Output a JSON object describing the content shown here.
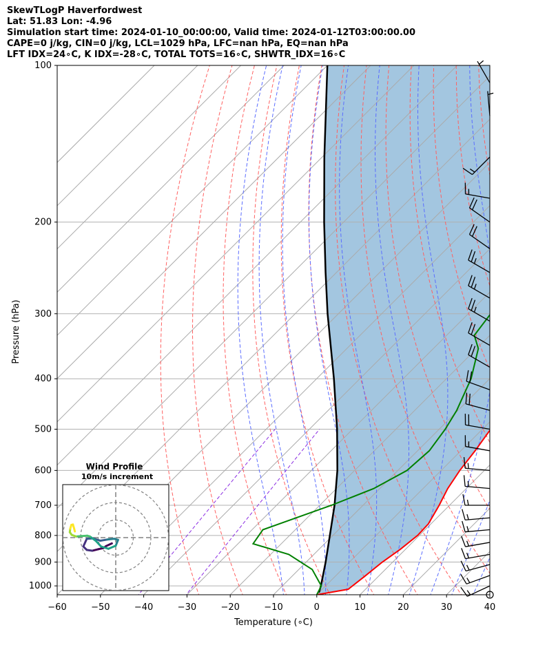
{
  "header": {
    "line1": "SkewTLogP Haverfordwest",
    "line2": "Lat: 51.83   Lon: -4.96",
    "line3": "Simulation start time: 2024-01-10_00:00:00, Valid time: 2024-01-12T03:00:00.00",
    "line4": "CAPE=0 j/kg, CIN=0 j/kg, LCL=1029 hPa, LFC=nan hPa, EQ=nan hPa",
    "line5": "LFT IDX=24∘C, K IDX=-28∘C, TOTAL TOTS=16∘C, SHWTR_IDX=16∘C"
  },
  "colors": {
    "temperature": "#ff0000",
    "dewpoint": "#008000",
    "parcel": "#000000",
    "fill": "#a3c6e0",
    "dry_adiabat": "#ff6060",
    "moist_adiabat": "#5a6cff",
    "mixing_ratio": "#8a2be2",
    "isotherm": "#aaaaaa"
  },
  "chart_data": {
    "type": "line",
    "title": "",
    "xlabel": "Temperature (∘C)",
    "ylabel": "Pressure (hPa)",
    "xlim": [
      -60,
      40
    ],
    "ylim": [
      1040,
      100
    ],
    "y_scale": "log",
    "grid": true,
    "x_ticks": [
      "−60",
      "−50",
      "−40",
      "−30",
      "−20",
      "−10",
      "0",
      "10",
      "20",
      "30",
      "40"
    ],
    "y_ticks": [
      "100",
      "200",
      "300",
      "400",
      "500",
      "600",
      "700",
      "800",
      "900",
      "1000"
    ],
    "series": [
      {
        "key": "temperature",
        "points": [
          [
            1040,
            0
          ],
          [
            1015,
            6
          ],
          [
            960,
            6.8
          ],
          [
            900,
            7.6
          ],
          [
            850,
            8.8
          ],
          [
            800,
            9.6
          ],
          [
            760,
            9.4
          ],
          [
            700,
            7.6
          ],
          [
            650,
            5.7
          ],
          [
            600,
            4.3
          ],
          [
            550,
            3.3
          ],
          [
            500,
            1.9
          ],
          [
            460,
            0.2
          ],
          [
            420,
            -2.6
          ],
          [
            380,
            -5.9
          ],
          [
            340,
            -9
          ],
          [
            300,
            -12.3
          ],
          [
            270,
            -15
          ],
          [
            240,
            -18.2
          ],
          [
            215,
            -19.5
          ],
          [
            200,
            -19.1
          ],
          [
            180,
            -17.3
          ],
          [
            160,
            -16.3
          ],
          [
            145,
            -17
          ],
          [
            135,
            -16.5
          ],
          [
            125,
            -16.8
          ],
          [
            115,
            -16.4
          ],
          [
            107,
            -16.3
          ],
          [
            100,
            -16.3
          ]
        ]
      },
      {
        "key": "dewpoint",
        "points": [
          [
            1040,
            0
          ],
          [
            1000,
            -1
          ],
          [
            930,
            -6.9
          ],
          [
            870,
            -15.8
          ],
          [
            830,
            -26.5
          ],
          [
            780,
            -27.5
          ],
          [
            700,
            -17.3
          ],
          [
            650,
            -11.4
          ],
          [
            600,
            -7.9
          ],
          [
            550,
            -7.3
          ],
          [
            500,
            -8.6
          ],
          [
            460,
            -10.3
          ],
          [
            400,
            -14.3
          ],
          [
            350,
            -19.6
          ],
          [
            330,
            -23.6
          ],
          [
            300,
            -24.8
          ],
          [
            270,
            -26.1
          ],
          [
            240,
            -28.5
          ],
          [
            200,
            -30.8
          ],
          [
            180,
            -29.9
          ],
          [
            160,
            -31.6
          ],
          [
            145,
            -31.9
          ],
          [
            130,
            -31
          ],
          [
            115,
            -28.9
          ],
          [
            100,
            -26
          ]
        ]
      },
      {
        "key": "parcel",
        "points": [
          [
            1030,
            0
          ],
          [
            1000,
            -1.1
          ],
          [
            900,
            -5.5
          ],
          [
            800,
            -10.7
          ],
          [
            700,
            -16.6
          ],
          [
            600,
            -24
          ],
          [
            500,
            -33.6
          ],
          [
            400,
            -46
          ],
          [
            300,
            -62.5
          ],
          [
            250,
            -72.5
          ],
          [
            200,
            -84.5
          ],
          [
            150,
            -99.5
          ],
          [
            100,
            -120
          ]
        ]
      }
    ],
    "wind_barbs": [
      {
        "p": 1040,
        "dir": 0,
        "spd": 0
      },
      {
        "p": 1000,
        "dir": 245,
        "spd": 15
      },
      {
        "p": 955,
        "dir": 250,
        "spd": 15
      },
      {
        "p": 910,
        "dir": 255,
        "spd": 15
      },
      {
        "p": 870,
        "dir": 260,
        "spd": 15
      },
      {
        "p": 825,
        "dir": 260,
        "spd": 15
      },
      {
        "p": 780,
        "dir": 265,
        "spd": 15
      },
      {
        "p": 740,
        "dir": 265,
        "spd": 15
      },
      {
        "p": 700,
        "dir": 270,
        "spd": 15
      },
      {
        "p": 650,
        "dir": 275,
        "spd": 15
      },
      {
        "p": 600,
        "dir": 275,
        "spd": 15
      },
      {
        "p": 550,
        "dir": 280,
        "spd": 15
      },
      {
        "p": 500,
        "dir": 280,
        "spd": 20
      },
      {
        "p": 460,
        "dir": 285,
        "spd": 20
      },
      {
        "p": 420,
        "dir": 290,
        "spd": 20
      },
      {
        "p": 380,
        "dir": 300,
        "spd": 20
      },
      {
        "p": 345,
        "dir": 300,
        "spd": 20
      },
      {
        "p": 310,
        "dir": 300,
        "spd": 25
      },
      {
        "p": 280,
        "dir": 300,
        "spd": 25
      },
      {
        "p": 250,
        "dir": 300,
        "spd": 25
      },
      {
        "p": 225,
        "dir": 305,
        "spd": 20
      },
      {
        "p": 200,
        "dir": 305,
        "spd": 20
      },
      {
        "p": 180,
        "dir": 280,
        "spd": 15
      },
      {
        "p": 150,
        "dir": 225,
        "spd": 15
      },
      {
        "p": 125,
        "dir": 355,
        "spd": 5
      },
      {
        "p": 108,
        "dir": 330,
        "spd": 5
      }
    ],
    "wind_profile": {
      "title": "Wind Profile",
      "subtitle": "10m/s increment",
      "hodograph": [
        [
          -1,
          -1.5
        ],
        [
          -2.5,
          -2.2
        ],
        [
          -3.2,
          -2.7
        ],
        [
          -4.5,
          -3
        ],
        [
          -6.1,
          -3.4
        ],
        [
          -7.5,
          -3.2
        ],
        [
          -8.4,
          -2.3
        ],
        [
          -7.5,
          -0.3
        ],
        [
          -5.9,
          -0.2
        ],
        [
          -4,
          -0.8
        ],
        [
          -2.2,
          -0.5
        ],
        [
          -0.4,
          -0.3
        ],
        [
          0.6,
          -0.6
        ],
        [
          0,
          -2.1
        ],
        [
          -1.9,
          -2.9
        ],
        [
          -3.8,
          -2.3
        ],
        [
          -5.2,
          -0.8
        ],
        [
          -6.7,
          0.3
        ],
        [
          -7.4,
          0.5
        ],
        [
          -8.9,
          0.4
        ],
        [
          -10.3,
          0.3
        ],
        [
          -11.4,
          0.7
        ],
        [
          -11.9,
          1.4
        ],
        [
          -11.8,
          2.3
        ],
        [
          -11.5,
          3.3
        ],
        [
          -11.1,
          3.4
        ],
        [
          -10.8,
          2.4
        ],
        [
          -10.6,
          1.6
        ]
      ]
    }
  }
}
